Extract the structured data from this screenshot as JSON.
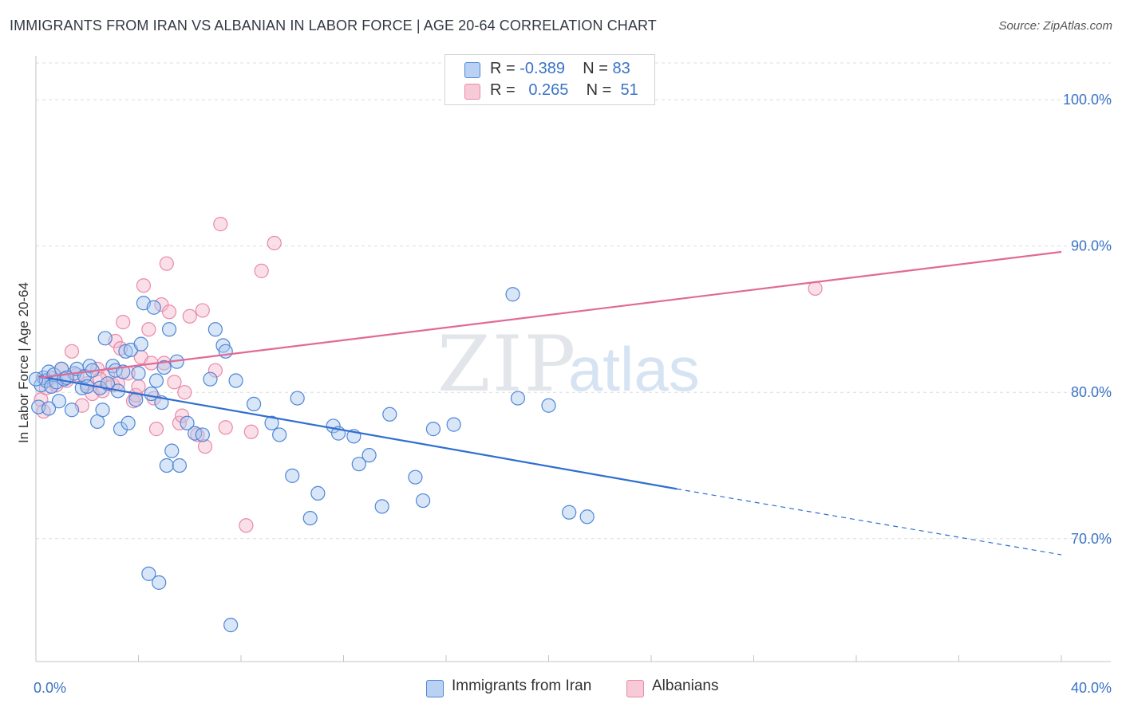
{
  "title": "IMMIGRANTS FROM IRAN VS ALBANIAN IN LABOR FORCE | AGE 20-64 CORRELATION CHART",
  "source": "Source: ZipAtlas.com",
  "watermark": {
    "zip": "ZIP",
    "atlas": "atlas"
  },
  "colors": {
    "blue_fill": "#a9c8f0",
    "blue_stroke": "#4f86d6",
    "blue_line": "#2f6fd0",
    "pink_fill": "#f6b9cb",
    "pink_stroke": "#e88aa8",
    "pink_line": "#e06a96",
    "axis_label": "#3a73c6",
    "grid": "#d9dde2"
  },
  "legend": {
    "rows": [
      {
        "r_label": "R =",
        "r_value": "-0.389",
        "n_label": "N =",
        "n_value": "83"
      },
      {
        "r_label": "R =",
        "r_value": "0.265",
        "n_label": "N =",
        "n_value": "51"
      }
    ]
  },
  "bottom_legend": {
    "series1": "Immigrants from Iran",
    "series2": "Albanians"
  },
  "chart_data": {
    "type": "scatter",
    "title": "IMMIGRANTS FROM IRAN VS ALBANIAN IN LABOR FORCE | AGE 20-64 CORRELATION CHART",
    "ylabel": "In Labor Force | Age 20-64",
    "xlabel": "",
    "xlim": [
      0,
      40
    ],
    "ylim": [
      61.6,
      103
    ],
    "x_tick_labels": [
      "0.0%",
      "40.0%"
    ],
    "y_ticks": [
      70,
      80,
      90,
      100
    ],
    "y_tick_labels": [
      "70.0%",
      "80.0%",
      "90.0%",
      "100.0%"
    ],
    "series": [
      {
        "name": "Immigrants from Iran",
        "color": "blue",
        "trend": {
          "x0": 0.1,
          "y0": 81.1,
          "x1": 25.0,
          "y1": 73.4,
          "dash_to_x": 40.0,
          "dash_to_y": 68.9
        },
        "points": [
          [
            0.1,
            79.0
          ],
          [
            0.2,
            80.5
          ],
          [
            0.3,
            81.0
          ],
          [
            0.4,
            80.8
          ],
          [
            0.5,
            81.4
          ],
          [
            0.6,
            80.4
          ],
          [
            0.7,
            81.2
          ],
          [
            0.8,
            80.7
          ],
          [
            0.9,
            79.4
          ],
          [
            1.0,
            81.6
          ],
          [
            1.1,
            80.9
          ],
          [
            1.4,
            78.8
          ],
          [
            1.5,
            81.3
          ],
          [
            1.6,
            81.6
          ],
          [
            1.8,
            80.3
          ],
          [
            1.9,
            81.1
          ],
          [
            2.0,
            80.4
          ],
          [
            2.1,
            81.8
          ],
          [
            2.2,
            81.5
          ],
          [
            2.4,
            78.0
          ],
          [
            2.5,
            80.3
          ],
          [
            2.6,
            78.8
          ],
          [
            2.7,
            83.7
          ],
          [
            2.8,
            80.6
          ],
          [
            3.0,
            81.8
          ],
          [
            3.1,
            81.5
          ],
          [
            3.2,
            80.1
          ],
          [
            3.3,
            77.5
          ],
          [
            3.4,
            81.4
          ],
          [
            3.5,
            82.8
          ],
          [
            3.6,
            77.9
          ],
          [
            3.7,
            82.9
          ],
          [
            3.9,
            79.5
          ],
          [
            4.0,
            81.3
          ],
          [
            4.1,
            83.3
          ],
          [
            4.2,
            86.1
          ],
          [
            4.4,
            67.6
          ],
          [
            4.5,
            79.9
          ],
          [
            4.6,
            85.8
          ],
          [
            4.7,
            80.8
          ],
          [
            4.8,
            67.0
          ],
          [
            4.9,
            79.3
          ],
          [
            5.0,
            81.7
          ],
          [
            5.1,
            75.0
          ],
          [
            5.2,
            84.3
          ],
          [
            5.3,
            76.0
          ],
          [
            5.5,
            82.1
          ],
          [
            5.6,
            75.0
          ],
          [
            5.9,
            77.9
          ],
          [
            6.2,
            77.2
          ],
          [
            6.5,
            77.1
          ],
          [
            6.8,
            80.9
          ],
          [
            7.0,
            84.3
          ],
          [
            7.3,
            83.2
          ],
          [
            7.4,
            82.8
          ],
          [
            7.6,
            64.1
          ],
          [
            7.8,
            80.8
          ],
          [
            8.5,
            79.2
          ],
          [
            9.2,
            77.9
          ],
          [
            9.5,
            77.1
          ],
          [
            10.0,
            74.3
          ],
          [
            10.2,
            79.6
          ],
          [
            10.7,
            71.4
          ],
          [
            11.0,
            73.1
          ],
          [
            11.6,
            77.7
          ],
          [
            11.8,
            77.2
          ],
          [
            12.4,
            77.0
          ],
          [
            12.6,
            75.1
          ],
          [
            13.0,
            75.7
          ],
          [
            13.5,
            72.2
          ],
          [
            13.8,
            78.5
          ],
          [
            14.8,
            74.2
          ],
          [
            15.1,
            72.6
          ],
          [
            15.5,
            77.5
          ],
          [
            16.3,
            77.8
          ],
          [
            18.6,
            86.7
          ],
          [
            18.8,
            79.6
          ],
          [
            20.0,
            79.1
          ],
          [
            20.8,
            71.8
          ],
          [
            21.5,
            71.5
          ],
          [
            0.0,
            80.9
          ],
          [
            0.5,
            78.9
          ],
          [
            1.2,
            81.0
          ]
        ]
      },
      {
        "name": "Albanians",
        "color": "pink",
        "trend": {
          "x0": 0.1,
          "y0": 81.0,
          "x1": 40.0,
          "y1": 89.6
        },
        "points": [
          [
            0.2,
            79.5
          ],
          [
            0.4,
            80.3
          ],
          [
            0.6,
            81.0
          ],
          [
            0.8,
            80.5
          ],
          [
            1.0,
            81.6
          ],
          [
            1.2,
            80.8
          ],
          [
            1.4,
            82.8
          ],
          [
            1.6,
            81.2
          ],
          [
            1.8,
            79.1
          ],
          [
            2.0,
            80.6
          ],
          [
            2.2,
            79.9
          ],
          [
            2.4,
            81.6
          ],
          [
            2.6,
            80.1
          ],
          [
            2.8,
            81.2
          ],
          [
            3.0,
            80.5
          ],
          [
            3.1,
            83.5
          ],
          [
            3.2,
            80.6
          ],
          [
            3.3,
            83.0
          ],
          [
            3.4,
            84.8
          ],
          [
            3.6,
            81.3
          ],
          [
            3.8,
            79.4
          ],
          [
            3.9,
            79.8
          ],
          [
            4.0,
            80.4
          ],
          [
            4.1,
            82.4
          ],
          [
            4.2,
            87.3
          ],
          [
            4.4,
            84.3
          ],
          [
            4.5,
            82.0
          ],
          [
            4.6,
            79.6
          ],
          [
            4.7,
            77.5
          ],
          [
            4.9,
            86.0
          ],
          [
            5.0,
            82.0
          ],
          [
            5.1,
            88.8
          ],
          [
            5.2,
            85.5
          ],
          [
            5.4,
            80.7
          ],
          [
            5.6,
            77.9
          ],
          [
            5.7,
            78.4
          ],
          [
            5.8,
            80.0
          ],
          [
            6.0,
            85.2
          ],
          [
            6.3,
            77.1
          ],
          [
            6.5,
            85.6
          ],
          [
            6.6,
            76.3
          ],
          [
            7.0,
            81.5
          ],
          [
            7.2,
            91.5
          ],
          [
            7.4,
            77.6
          ],
          [
            8.2,
            70.9
          ],
          [
            8.4,
            77.3
          ],
          [
            8.8,
            88.3
          ],
          [
            9.3,
            90.2
          ],
          [
            30.4,
            87.1
          ],
          [
            0.3,
            78.7
          ],
          [
            2.5,
            80.9
          ]
        ]
      }
    ]
  }
}
